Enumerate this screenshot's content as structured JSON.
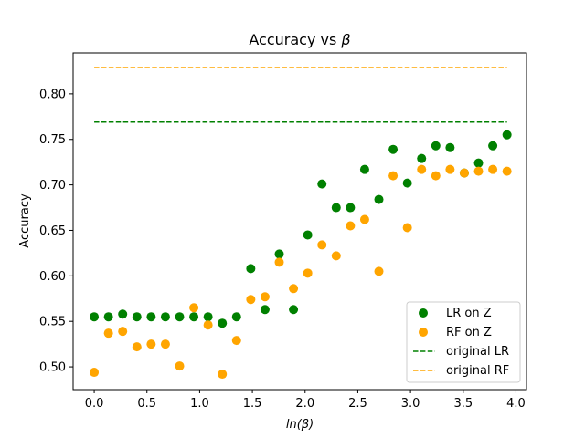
{
  "chart_data": {
    "type": "scatter",
    "title_prefix": "Accuracy vs ",
    "title_symbol": "β",
    "xlabel_prefix": "ln(",
    "xlabel_symbol": "β",
    "xlabel_suffix": ")",
    "ylabel": "Accuracy",
    "xlim": [
      -0.2,
      4.1
    ],
    "ylim": [
      0.475,
      0.845
    ],
    "xticks": [
      0.0,
      0.5,
      1.0,
      1.5,
      2.0,
      2.5,
      3.0,
      3.5,
      4.0
    ],
    "xtick_labels": [
      "0.0",
      "0.5",
      "1.0",
      "1.5",
      "2.0",
      "2.5",
      "3.0",
      "3.5",
      "4.0"
    ],
    "yticks": [
      0.5,
      0.55,
      0.6,
      0.65,
      0.7,
      0.75,
      0.8
    ],
    "ytick_labels": [
      "0.50",
      "0.55",
      "0.60",
      "0.65",
      "0.70",
      "0.75",
      "0.80"
    ],
    "grid": false,
    "legend_position": "lower-right",
    "x": [
      0.0,
      0.135,
      0.27,
      0.405,
      0.54,
      0.675,
      0.81,
      0.945,
      1.08,
      1.215,
      1.35,
      1.485,
      1.62,
      1.755,
      1.89,
      2.025,
      2.16,
      2.295,
      2.43,
      2.565,
      2.7,
      2.835,
      2.97,
      3.105,
      3.24,
      3.375,
      3.51,
      3.645,
      3.78,
      3.915
    ],
    "series": [
      {
        "name": "LR on Z",
        "kind": "scatter",
        "color": "#008000",
        "values": [
          0.555,
          0.555,
          0.558,
          0.555,
          0.555,
          0.555,
          0.555,
          0.555,
          0.555,
          0.548,
          0.555,
          0.608,
          0.563,
          0.624,
          0.563,
          0.645,
          0.701,
          0.675,
          0.675,
          0.717,
          0.684,
          0.739,
          0.702,
          0.729,
          0.743,
          0.741,
          0.713,
          0.724,
          0.743,
          0.755
        ]
      },
      {
        "name": "RF on Z",
        "kind": "scatter",
        "color": "#FFA500",
        "values": [
          0.494,
          0.537,
          0.539,
          0.522,
          0.525,
          0.525,
          0.501,
          0.565,
          0.546,
          0.492,
          0.529,
          0.574,
          0.577,
          0.615,
          0.586,
          0.603,
          0.634,
          0.622,
          0.655,
          0.662,
          0.605,
          0.71,
          0.653,
          0.717,
          0.71,
          0.717,
          0.713,
          0.715,
          0.717,
          0.715
        ]
      }
    ],
    "reference_lines": [
      {
        "name": "original LR",
        "kind": "dashed-line",
        "color": "#008000",
        "y": 0.769,
        "x_range": [
          0.0,
          3.915
        ]
      },
      {
        "name": "original RF",
        "kind": "dashed-line",
        "color": "#FFA500",
        "y": 0.829,
        "x_range": [
          0.0,
          3.915
        ]
      }
    ]
  }
}
